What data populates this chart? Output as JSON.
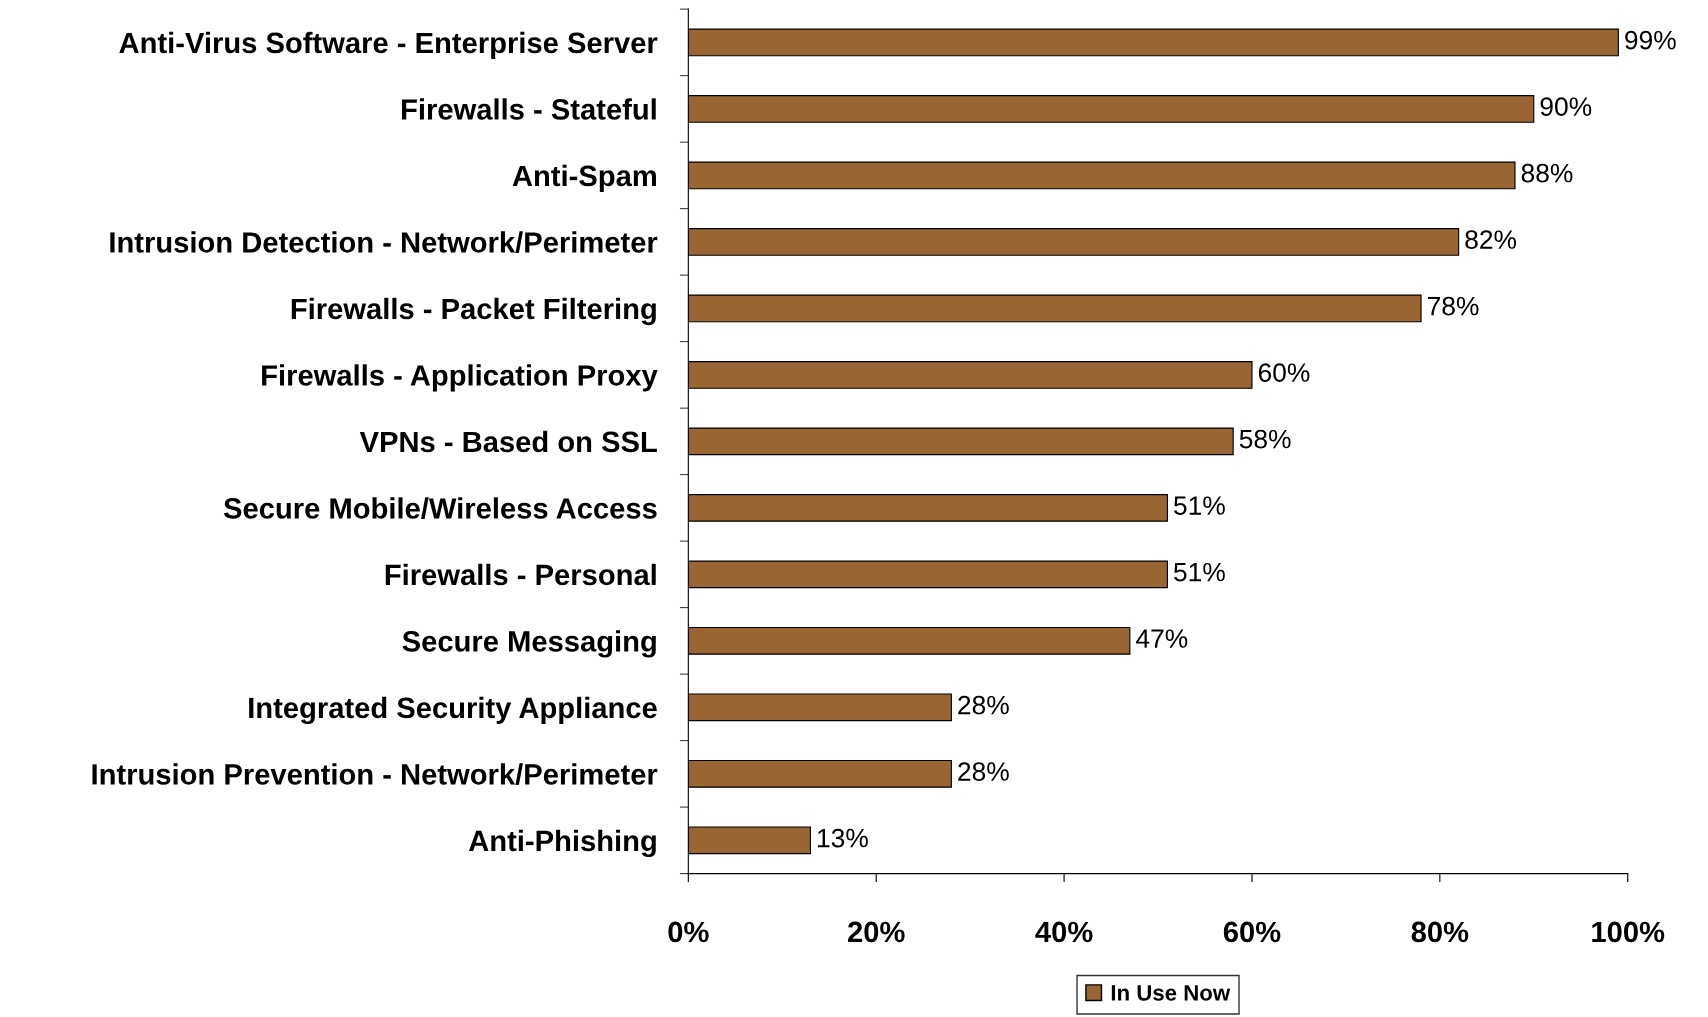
{
  "chart_data": {
    "type": "bar",
    "orientation": "horizontal",
    "categories": [
      "Anti-Virus Software - Enterprise Server",
      "Firewalls - Stateful",
      "Anti-Spam",
      "Intrusion Detection - Network/Perimeter",
      "Firewalls - Packet Filtering",
      "Firewalls - Application Proxy",
      "VPNs - Based on SSL",
      "Secure Mobile/Wireless Access",
      "Firewalls - Personal",
      "Secure Messaging",
      "Integrated Security Appliance",
      "Intrusion Prevention - Network/Perimeter",
      "Anti-Phishing"
    ],
    "series": [
      {
        "name": "In Use Now",
        "color": "#996633",
        "values": [
          99,
          90,
          88,
          82,
          78,
          60,
          58,
          51,
          51,
          47,
          28,
          28,
          13
        ],
        "value_labels": [
          "99%",
          "90%",
          "88%",
          "82%",
          "78%",
          "60%",
          "58%",
          "51%",
          "51%",
          "47%",
          "28%",
          "28%",
          "13%"
        ]
      }
    ],
    "xlim": [
      0,
      100
    ],
    "xticks": [
      {
        "value": 0,
        "label": "0%"
      },
      {
        "value": 20,
        "label": "20%"
      },
      {
        "value": 40,
        "label": "40%"
      },
      {
        "value": 60,
        "label": "60%"
      },
      {
        "value": 80,
        "label": "80%"
      },
      {
        "value": 100,
        "label": "100%"
      }
    ],
    "grid": false,
    "legend": "bottom"
  }
}
